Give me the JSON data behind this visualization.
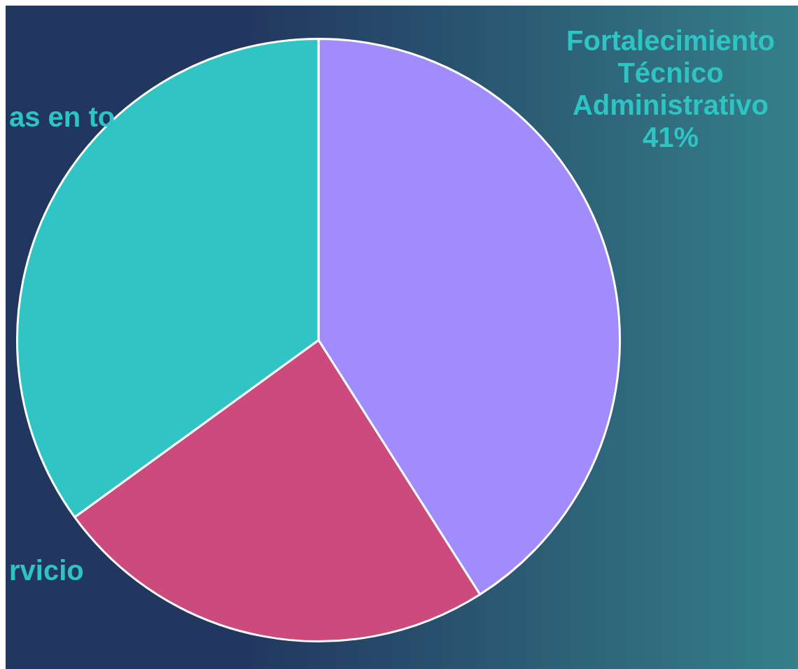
{
  "chart_data": {
    "type": "pie",
    "categories": [
      "Fortalecimiento Técnico Administrativo",
      "rvicio",
      "as en to"
    ],
    "values": [
      41,
      24,
      35
    ],
    "colors": [
      "#a08cfc",
      "#cc4a7c",
      "#30c4c4"
    ],
    "value_labels": [
      "41%",
      null,
      null
    ],
    "legend": false
  }
}
